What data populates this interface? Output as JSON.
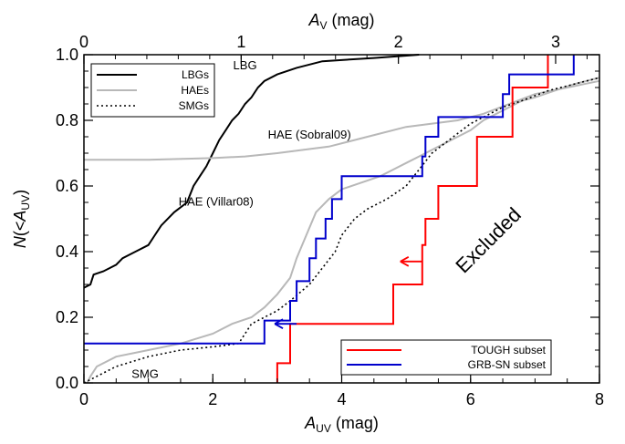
{
  "chart_data": {
    "type": "line",
    "xlabel": "A_UV (mag)",
    "ylabel": "N(<A_UV)",
    "top_xlabel": "A_V (mag)",
    "xlim": [
      0,
      8
    ],
    "ylim": [
      0,
      1
    ],
    "top_axis": {
      "ticks": [
        0,
        1,
        2,
        3
      ],
      "scale_from_bottom": 2.44
    },
    "xticks": [
      "0",
      "2",
      "4",
      "6",
      "8"
    ],
    "yticks": [
      "0.0",
      "0.2",
      "0.4",
      "0.6",
      "0.8",
      "1.0"
    ],
    "legend_placement": "top-left",
    "legend2_placement": "bottom-right",
    "series": [
      {
        "name": "LBGs",
        "key": "lbg",
        "color": "#000000",
        "dash": "",
        "points": [
          [
            0,
            0.29
          ],
          [
            0.1,
            0.3
          ],
          [
            0.15,
            0.33
          ],
          [
            0.3,
            0.34
          ],
          [
            0.4,
            0.35
          ],
          [
            0.5,
            0.36
          ],
          [
            0.6,
            0.38
          ],
          [
            0.8,
            0.4
          ],
          [
            1.0,
            0.42
          ],
          [
            1.1,
            0.45
          ],
          [
            1.2,
            0.48
          ],
          [
            1.4,
            0.52
          ],
          [
            1.6,
            0.55
          ],
          [
            1.7,
            0.6
          ],
          [
            1.8,
            0.63
          ],
          [
            1.9,
            0.66
          ],
          [
            2.0,
            0.7
          ],
          [
            2.1,
            0.74
          ],
          [
            2.2,
            0.77
          ],
          [
            2.3,
            0.8
          ],
          [
            2.4,
            0.82
          ],
          [
            2.5,
            0.85
          ],
          [
            2.6,
            0.87
          ],
          [
            2.7,
            0.9
          ],
          [
            2.8,
            0.92
          ],
          [
            3.0,
            0.94
          ],
          [
            3.3,
            0.96
          ],
          [
            3.7,
            0.98
          ],
          [
            4.5,
            0.99
          ],
          [
            5.2,
            1.0
          ]
        ]
      },
      {
        "name": "HAEs",
        "key": "hae",
        "color": "#b8b8b8",
        "dash": "",
        "points": [
          [
            0,
            0.68
          ],
          [
            1,
            0.68
          ],
          [
            2.0,
            0.685
          ],
          [
            2.5,
            0.69
          ],
          [
            3,
            0.7
          ],
          [
            3.4,
            0.71
          ],
          [
            3.8,
            0.72
          ],
          [
            4.2,
            0.74
          ],
          [
            4.6,
            0.76
          ],
          [
            5.0,
            0.78
          ],
          [
            5.4,
            0.79
          ],
          [
            5.8,
            0.8
          ],
          [
            6.2,
            0.82
          ],
          [
            6.6,
            0.85
          ],
          [
            7.0,
            0.88
          ],
          [
            7.5,
            0.9
          ],
          [
            8,
            0.92
          ]
        ]
      },
      {
        "name": "",
        "key": "hae2",
        "color": "#b8b8b8",
        "dash": "",
        "points": [
          [
            0.05,
            0
          ],
          [
            0.1,
            0.02
          ],
          [
            0.2,
            0.05
          ],
          [
            0.5,
            0.08
          ],
          [
            1.0,
            0.1
          ],
          [
            1.5,
            0.12
          ],
          [
            2.0,
            0.15
          ],
          [
            2.3,
            0.18
          ],
          [
            2.6,
            0.2
          ],
          [
            2.8,
            0.23
          ],
          [
            3.0,
            0.27
          ],
          [
            3.2,
            0.32
          ],
          [
            3.3,
            0.38
          ],
          [
            3.45,
            0.45
          ],
          [
            3.6,
            0.52
          ],
          [
            3.8,
            0.56
          ],
          [
            4.0,
            0.59
          ],
          [
            4.3,
            0.61
          ],
          [
            4.6,
            0.63
          ],
          [
            4.8,
            0.65
          ],
          [
            5.0,
            0.67
          ],
          [
            5.2,
            0.69
          ],
          [
            5.4,
            0.71
          ],
          [
            5.6,
            0.73
          ],
          [
            5.8,
            0.75
          ],
          [
            6.0,
            0.77
          ],
          [
            6.2,
            0.8
          ],
          [
            6.4,
            0.82
          ],
          [
            6.6,
            0.84
          ],
          [
            6.8,
            0.86
          ],
          [
            7.0,
            0.87
          ],
          [
            7.3,
            0.89
          ],
          [
            7.6,
            0.91
          ],
          [
            8,
            0.93
          ]
        ]
      },
      {
        "name": "SMGs",
        "key": "smg",
        "color": "#000000",
        "dash": "2,3",
        "points": [
          [
            0,
            0
          ],
          [
            0.2,
            0.02
          ],
          [
            0.5,
            0.05
          ],
          [
            1.0,
            0.08
          ],
          [
            1.5,
            0.1
          ],
          [
            2.0,
            0.11
          ],
          [
            2.4,
            0.12
          ],
          [
            2.5,
            0.15
          ],
          [
            2.6,
            0.18
          ],
          [
            2.8,
            0.2
          ],
          [
            3.0,
            0.22
          ],
          [
            3.2,
            0.25
          ],
          [
            3.5,
            0.3
          ],
          [
            3.7,
            0.35
          ],
          [
            3.9,
            0.4
          ],
          [
            4.0,
            0.45
          ],
          [
            4.2,
            0.5
          ],
          [
            4.4,
            0.53
          ],
          [
            4.7,
            0.56
          ],
          [
            5.0,
            0.6
          ],
          [
            5.2,
            0.65
          ],
          [
            5.4,
            0.7
          ],
          [
            5.6,
            0.73
          ],
          [
            5.8,
            0.76
          ],
          [
            6.0,
            0.79
          ],
          [
            6.2,
            0.81
          ],
          [
            6.5,
            0.84
          ],
          [
            6.8,
            0.86
          ],
          [
            7.2,
            0.89
          ],
          [
            7.6,
            0.91
          ],
          [
            8,
            0.93
          ]
        ]
      },
      {
        "name": "TOUGH subset",
        "key": "tough",
        "color": "#ff0000",
        "dash": "",
        "steps": [
          [
            3.0,
            0.0
          ],
          [
            3.0,
            0.06
          ],
          [
            3.2,
            0.06
          ],
          [
            3.2,
            0.18
          ],
          [
            4.8,
            0.18
          ],
          [
            4.8,
            0.3
          ],
          [
            5.25,
            0.3
          ],
          [
            5.25,
            0.42
          ],
          [
            5.3,
            0.42
          ],
          [
            5.3,
            0.5
          ],
          [
            5.5,
            0.5
          ],
          [
            5.5,
            0.6
          ],
          [
            6.1,
            0.6
          ],
          [
            6.1,
            0.75
          ],
          [
            6.65,
            0.75
          ],
          [
            6.65,
            0.9
          ],
          [
            7.2,
            0.9
          ],
          [
            7.2,
            1.0
          ]
        ]
      },
      {
        "name": "GRB-SN subset",
        "key": "grbsn",
        "color": "#0000cc",
        "dash": "",
        "steps": [
          [
            0,
            0.12
          ],
          [
            2.8,
            0.12
          ],
          [
            2.8,
            0.19
          ],
          [
            3.2,
            0.19
          ],
          [
            3.2,
            0.25
          ],
          [
            3.3,
            0.25
          ],
          [
            3.3,
            0.31
          ],
          [
            3.5,
            0.31
          ],
          [
            3.5,
            0.38
          ],
          [
            3.6,
            0.38
          ],
          [
            3.6,
            0.44
          ],
          [
            3.75,
            0.44
          ],
          [
            3.75,
            0.5
          ],
          [
            3.85,
            0.5
          ],
          [
            3.85,
            0.56
          ],
          [
            4.0,
            0.56
          ],
          [
            4.0,
            0.63
          ],
          [
            5.25,
            0.63
          ],
          [
            5.25,
            0.69
          ],
          [
            5.3,
            0.69
          ],
          [
            5.3,
            0.75
          ],
          [
            5.5,
            0.75
          ],
          [
            5.5,
            0.81
          ],
          [
            6.5,
            0.81
          ],
          [
            6.5,
            0.88
          ],
          [
            6.6,
            0.88
          ],
          [
            6.6,
            0.94
          ],
          [
            7.6,
            0.94
          ],
          [
            7.6,
            1.0
          ]
        ]
      }
    ],
    "annotations": [
      {
        "text": "LBG",
        "x": 2.5,
        "y": 0.955,
        "size": "normal",
        "rotate": 0
      },
      {
        "text": "HAE (Sobral09)",
        "x": 3.5,
        "y": 0.745,
        "size": "normal",
        "rotate": 0
      },
      {
        "text": "HAE (Villar08)",
        "x": 2.05,
        "y": 0.54,
        "size": "normal",
        "rotate": 0
      },
      {
        "text": "SMG",
        "x": 0.95,
        "y": 0.015,
        "size": "normal",
        "rotate": 0
      },
      {
        "text": "Excluded",
        "x": 6.35,
        "y": 0.42,
        "size": "big",
        "rotate": -45
      }
    ],
    "arrows": [
      {
        "key": "tough",
        "x": 5.25,
        "y": 0.37,
        "color": "#ff0000"
      },
      {
        "key": "grbsn",
        "x": 3.3,
        "y": 0.18,
        "color": "#0000cc"
      }
    ]
  },
  "legend_top": [
    {
      "label": "LBGs",
      "color": "#000000",
      "dash": ""
    },
    {
      "label": "HAEs",
      "color": "#b8b8b8",
      "dash": ""
    },
    {
      "label": "SMGs",
      "color": "#000000",
      "dash": "2,3"
    }
  ],
  "legend_bottom": [
    {
      "label": "TOUGH subset",
      "color": "#ff0000"
    },
    {
      "label": "GRB-SN subset",
      "color": "#0000cc"
    }
  ]
}
